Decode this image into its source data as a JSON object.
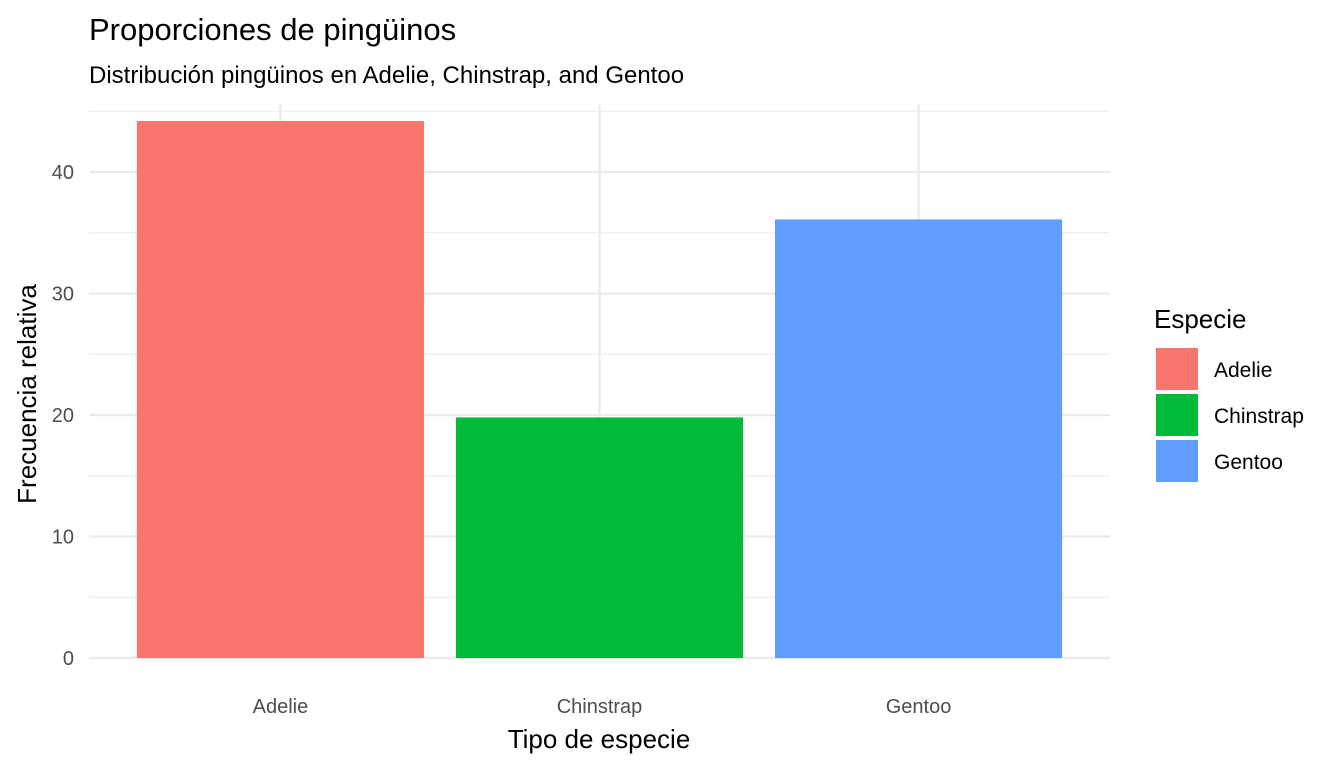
{
  "chart_data": {
    "type": "bar",
    "title": "Proporciones de pingüinos",
    "subtitle": "Distribución pingüinos en Adelie, Chinstrap, and Gentoo",
    "xlabel": "Tipo de especie",
    "ylabel": "Frecuencia relativa",
    "categories": [
      "Adelie",
      "Chinstrap",
      "Gentoo"
    ],
    "values": [
      44.2,
      19.8,
      36.1
    ],
    "colors": [
      "#F8766D",
      "#00BA38",
      "#619CFF"
    ],
    "ylim": [
      0,
      45.6
    ],
    "yticks": [
      0,
      10,
      20,
      30,
      40
    ],
    "grid": true,
    "legend": {
      "title": "Especie",
      "position": "right",
      "entries": [
        "Adelie",
        "Chinstrap",
        "Gentoo"
      ]
    }
  }
}
